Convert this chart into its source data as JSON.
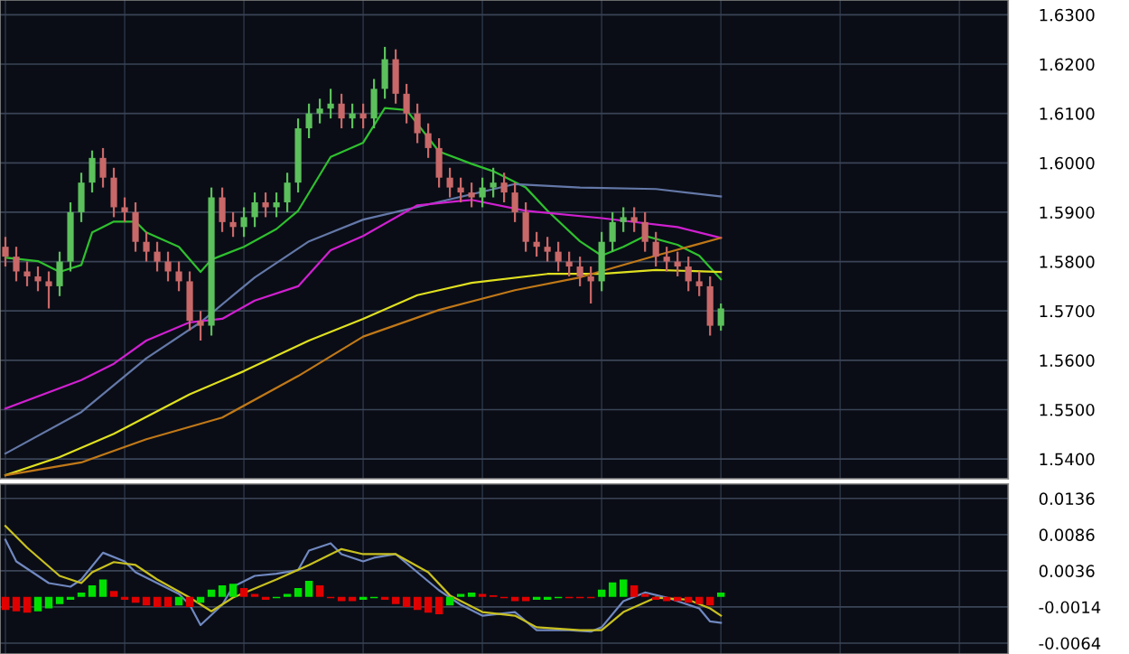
{
  "chart_data": [
    {
      "type": "candlestick",
      "categories": [
        null,
        null,
        null,
        null,
        null,
        null,
        null,
        null,
        null,
        null,
        null,
        null,
        null,
        null,
        null,
        null,
        null,
        null,
        null,
        null,
        null,
        null,
        null,
        null,
        null,
        null,
        null,
        null,
        null,
        null,
        null,
        null,
        null,
        null,
        null,
        null,
        null,
        null,
        null,
        null,
        null,
        null,
        null,
        null,
        null,
        null,
        null,
        null,
        null,
        null,
        null,
        null,
        null,
        null,
        null,
        null,
        null,
        null,
        null,
        null,
        null,
        null,
        null,
        null,
        null,
        null,
        null,
        null,
        null,
        null,
        null,
        null,
        null,
        null,
        null,
        null,
        null,
        null,
        null,
        null,
        null,
        null,
        null,
        null,
        null,
        null,
        null,
        null,
        null,
        null,
        null,
        null,
        null
      ],
      "colors": [
        "#c86868",
        "#c86868",
        "#c86868",
        "#c86868",
        "#c86868",
        "#5cc05c",
        "#5cc05c",
        "#5cc05c",
        "#5cc05c",
        "#c86868",
        "#c86868",
        "#c86868",
        "#c86868",
        "#c86868",
        "#c86868",
        "#c86868",
        "#c86868",
        "#c86868",
        "#c86868",
        "#5cc05c",
        "#c86868",
        "#c86868",
        "#5cc05c",
        "#5cc05c",
        "#c86868",
        "#5cc05c",
        "#5cc05c",
        "#5cc05c",
        "#5cc05c",
        "#5cc05c",
        "#5cc05c",
        "#c86868",
        "#5cc05c",
        "#c86868",
        "#5cc05c",
        "#5cc05c",
        "#c86868",
        "#c86868",
        "#c86868",
        "#c86868",
        "#c86868",
        "#c86868",
        "#c86868",
        "#c86868",
        "#5cc05c",
        "#5cc05c",
        "#c86868",
        "#c86868",
        "#c86868",
        "#c86868",
        "#c86868",
        "#c86868",
        "#c86868",
        "#c86868",
        "#c86868",
        "#5cc05c",
        "#5cc05c",
        "#5cc05c",
        "#c86868",
        "#c86868",
        "#c86868",
        "#c86868",
        "#c86868",
        "#c86868",
        "#c86868",
        "#c86868",
        "#5cc05c",
        null,
        null,
        null,
        null,
        null,
        null,
        null,
        null,
        null,
        null,
        null,
        null,
        null,
        null,
        null,
        null,
        null,
        null,
        null,
        null,
        null,
        null,
        null,
        null,
        null,
        null
      ],
      "ohlc": [
        [
          1.583,
          1.585,
          1.579,
          1.581
        ],
        [
          1.581,
          1.583,
          1.576,
          1.578
        ],
        [
          1.578,
          1.58,
          1.575,
          1.577
        ],
        [
          1.577,
          1.579,
          1.574,
          1.576
        ],
        [
          1.576,
          1.578,
          1.5705,
          1.575
        ],
        [
          1.575,
          1.582,
          1.573,
          1.58
        ],
        [
          1.58,
          1.592,
          1.578,
          1.59
        ],
        [
          1.59,
          1.598,
          1.588,
          1.596
        ],
        [
          1.596,
          1.6025,
          1.594,
          1.601
        ],
        [
          1.601,
          1.603,
          1.595,
          1.597
        ],
        [
          1.597,
          1.599,
          1.589,
          1.591
        ],
        [
          1.591,
          1.593,
          1.588,
          1.59
        ],
        [
          1.59,
          1.592,
          1.582,
          1.584
        ],
        [
          1.584,
          1.586,
          1.58,
          1.582
        ],
        [
          1.582,
          1.584,
          1.578,
          1.58
        ],
        [
          1.58,
          1.582,
          1.576,
          1.578
        ],
        [
          1.578,
          1.58,
          1.574,
          1.576
        ],
        [
          1.576,
          1.578,
          1.566,
          1.568
        ],
        [
          1.568,
          1.57,
          1.564,
          1.567
        ],
        [
          1.567,
          1.595,
          1.565,
          1.593
        ],
        [
          1.593,
          1.595,
          1.586,
          1.588
        ],
        [
          1.588,
          1.59,
          1.585,
          1.587
        ],
        [
          1.587,
          1.591,
          1.585,
          1.589
        ],
        [
          1.589,
          1.594,
          1.587,
          1.592
        ],
        [
          1.592,
          1.594,
          1.589,
          1.591
        ],
        [
          1.591,
          1.594,
          1.589,
          1.592
        ],
        [
          1.592,
          1.598,
          1.59,
          1.596
        ],
        [
          1.596,
          1.609,
          1.594,
          1.607
        ],
        [
          1.607,
          1.612,
          1.605,
          1.61
        ],
        [
          1.61,
          1.613,
          1.608,
          1.611
        ],
        [
          1.611,
          1.615,
          1.609,
          1.612
        ],
        [
          1.612,
          1.614,
          1.607,
          1.609
        ],
        [
          1.609,
          1.612,
          1.607,
          1.61
        ],
        [
          1.61,
          1.612,
          1.607,
          1.609
        ],
        [
          1.609,
          1.617,
          1.607,
          1.615
        ],
        [
          1.615,
          1.6235,
          1.613,
          1.621
        ],
        [
          1.621,
          1.623,
          1.612,
          1.614
        ],
        [
          1.614,
          1.616,
          1.608,
          1.61
        ],
        [
          1.61,
          1.612,
          1.604,
          1.606
        ],
        [
          1.606,
          1.608,
          1.601,
          1.603
        ],
        [
          1.603,
          1.605,
          1.595,
          1.597
        ],
        [
          1.597,
          1.599,
          1.593,
          1.595
        ],
        [
          1.595,
          1.597,
          1.592,
          1.594
        ],
        [
          1.594,
          1.596,
          1.591,
          1.593
        ],
        [
          1.593,
          1.597,
          1.591,
          1.595
        ],
        [
          1.595,
          1.599,
          1.593,
          1.596
        ],
        [
          1.596,
          1.598,
          1.592,
          1.594
        ],
        [
          1.594,
          1.596,
          1.588,
          1.59
        ],
        [
          1.59,
          1.592,
          1.582,
          1.584
        ],
        [
          1.584,
          1.586,
          1.581,
          1.583
        ],
        [
          1.583,
          1.585,
          1.58,
          1.582
        ],
        [
          1.582,
          1.584,
          1.578,
          1.58
        ],
        [
          1.58,
          1.582,
          1.577,
          1.579
        ],
        [
          1.579,
          1.581,
          1.575,
          1.577
        ],
        [
          1.577,
          1.579,
          1.5715,
          1.576
        ],
        [
          1.576,
          1.586,
          1.574,
          1.584
        ],
        [
          1.584,
          1.59,
          1.582,
          1.588
        ],
        [
          1.588,
          1.591,
          1.586,
          1.589
        ],
        [
          1.589,
          1.591,
          1.586,
          1.588
        ],
        [
          1.588,
          1.59,
          1.582,
          1.584
        ],
        [
          1.584,
          1.586,
          1.579,
          1.581
        ],
        [
          1.581,
          1.583,
          1.578,
          1.58
        ],
        [
          1.58,
          1.582,
          1.577,
          1.579
        ],
        [
          1.579,
          1.581,
          1.574,
          1.576
        ],
        [
          1.576,
          1.578,
          1.573,
          1.575
        ],
        [
          1.575,
          1.577,
          1.565,
          1.567
        ],
        [
          1.567,
          1.5715,
          1.566,
          1.5705
        ],
        null,
        null,
        null,
        null,
        null,
        null,
        null,
        null,
        null,
        null,
        null,
        null,
        null,
        null,
        null,
        null,
        null,
        null,
        null,
        null,
        null,
        null,
        null,
        null,
        null,
        null
      ],
      "series": [
        {
          "type": "line",
          "color": "#2fc02f",
          "values": [
            1.5808,
            null,
            null,
            1.5801,
            null,
            1.5779,
            null,
            1.5793,
            1.5859,
            null,
            1.5881,
            null,
            1.5881,
            1.5859,
            null,
            null,
            1.583,
            null,
            1.5779,
            1.5804,
            null,
            null,
            1.583,
            null,
            null,
            1.5866,
            null,
            1.5903,
            null,
            null,
            1.6012,
            null,
            null,
            1.6041,
            null,
            1.6111,
            null,
            1.6107,
            null,
            null,
            1.6023,
            null,
            null,
            1.5998,
            null,
            1.5983,
            null,
            null,
            1.595,
            null,
            1.5903,
            null,
            null,
            1.5841,
            null,
            1.5812,
            null,
            1.583,
            null,
            1.5852,
            null,
            null,
            1.5834,
            null,
            1.5812,
            null,
            1.5764,
            null,
            null,
            null,
            null,
            null,
            null,
            null,
            null,
            null,
            null,
            null,
            null,
            null,
            null,
            null,
            null,
            null,
            null,
            null,
            null,
            null,
            null,
            null,
            null,
            null,
            null
          ]
        },
        {
          "type": "line",
          "color": "#6478a8",
          "values": [
            1.5411,
            null,
            null,
            null,
            null,
            null,
            null,
            1.5495,
            null,
            null,
            null,
            null,
            null,
            1.5604,
            null,
            null,
            null,
            null,
            1.5677,
            null,
            null,
            null,
            null,
            1.5768,
            null,
            null,
            null,
            null,
            1.5841,
            null,
            null,
            null,
            null,
            1.5885,
            null,
            null,
            null,
            null,
            null,
            null,
            1.5921,
            null,
            null,
            null,
            null,
            null,
            null,
            1.5957,
            null,
            null,
            null,
            null,
            null,
            1.595,
            null,
            null,
            null,
            null,
            null,
            null,
            1.5947,
            null,
            null,
            null,
            null,
            null,
            1.5932,
            null,
            null,
            null,
            null,
            null,
            null,
            null,
            null,
            null,
            null,
            null,
            null,
            null,
            null,
            null,
            null,
            null,
            null,
            null,
            null,
            null,
            null,
            null,
            null,
            null,
            null
          ]
        },
        {
          "type": "line",
          "color": "#d020d0",
          "values": [
            1.5502,
            null,
            null,
            null,
            null,
            null,
            null,
            1.556,
            null,
            null,
            1.5593,
            null,
            null,
            1.564,
            null,
            null,
            null,
            1.5677,
            null,
            null,
            1.5684,
            null,
            null,
            1.5721,
            null,
            null,
            null,
            1.575,
            null,
            null,
            1.5823,
            null,
            null,
            1.5852,
            null,
            null,
            null,
            null,
            1.5914,
            null,
            null,
            null,
            null,
            1.5925,
            null,
            null,
            null,
            null,
            1.5903,
            null,
            null,
            null,
            null,
            null,
            null,
            1.5888,
            null,
            null,
            null,
            null,
            null,
            null,
            1.587,
            null,
            null,
            null,
            1.5848,
            null,
            null,
            null,
            null,
            null,
            null,
            null,
            null,
            null,
            null,
            null,
            null,
            null,
            null,
            null,
            null,
            null,
            null,
            null,
            null,
            null,
            null,
            null,
            null,
            null,
            null
          ]
        },
        {
          "type": "line",
          "color": "#e0e020",
          "values": [
            1.5367,
            null,
            null,
            null,
            null,
            1.5404,
            null,
            null,
            null,
            null,
            1.5451,
            null,
            null,
            null,
            null,
            null,
            null,
            1.5531,
            null,
            null,
            null,
            null,
            1.5578,
            null,
            null,
            null,
            null,
            null,
            1.564,
            null,
            null,
            null,
            null,
            1.5684,
            null,
            null,
            null,
            null,
            1.5732,
            null,
            null,
            null,
            null,
            1.5757,
            null,
            null,
            null,
            null,
            null,
            null,
            1.5775,
            null,
            null,
            null,
            null,
            1.5775,
            null,
            null,
            null,
            null,
            1.5783,
            null,
            null,
            null,
            null,
            null,
            1.5779,
            null,
            null,
            null,
            null,
            null,
            null,
            null,
            null,
            null,
            null,
            null,
            null,
            null,
            null,
            null,
            null,
            null,
            null,
            null,
            null,
            null,
            null,
            null,
            null,
            null,
            null
          ]
        },
        {
          "type": "line",
          "color": "#c07818",
          "values": [
            1.5367,
            null,
            null,
            null,
            null,
            null,
            null,
            1.5393,
            null,
            null,
            null,
            null,
            null,
            1.544,
            null,
            null,
            null,
            null,
            null,
            null,
            1.5484,
            null,
            null,
            null,
            null,
            null,
            null,
            1.5568,
            null,
            null,
            null,
            null,
            null,
            1.5648,
            null,
            null,
            null,
            null,
            null,
            null,
            1.5702,
            null,
            null,
            null,
            null,
            null,
            null,
            1.5742,
            null,
            null,
            null,
            null,
            null,
            1.5768,
            null,
            null,
            null,
            null,
            null,
            null,
            1.5812,
            null,
            null,
            null,
            null,
            null,
            1.5848,
            null,
            null,
            null,
            null,
            null,
            null,
            null,
            null,
            null,
            null,
            null,
            null,
            null,
            null,
            null,
            null,
            null,
            null,
            null,
            null,
            null,
            null,
            null,
            null,
            null,
            null
          ]
        }
      ],
      "ylim": [
        1.536,
        1.633
      ],
      "yticks": [
        {
          "value": 1.54,
          "label": "1.5400"
        },
        {
          "value": 1.55,
          "label": "1.5500"
        },
        {
          "value": 1.56,
          "label": "1.5600"
        },
        {
          "value": 1.57,
          "label": "1.5700"
        },
        {
          "value": 1.58,
          "label": "1.5800"
        },
        {
          "value": 1.59,
          "label": "1.5900"
        },
        {
          "value": 1.6,
          "label": "1.6000"
        },
        {
          "value": 1.61,
          "label": "1.6100"
        },
        {
          "value": 1.62,
          "label": "1.6200"
        },
        {
          "value": 1.63,
          "label": "1.6300"
        }
      ],
      "grid": true,
      "tick_labels": "y"
    },
    {
      "type": "bar",
      "categories": [
        null,
        null,
        null,
        null,
        null,
        null,
        null,
        null,
        null,
        null,
        null,
        null,
        null,
        null,
        null,
        null,
        null,
        null,
        null,
        null,
        null,
        null,
        null,
        null,
        null,
        null,
        null,
        null,
        null,
        null,
        null,
        null,
        null,
        null,
        null,
        null,
        null,
        null,
        null,
        null,
        null,
        null,
        null,
        null,
        null,
        null,
        null,
        null,
        null,
        null,
        null,
        null,
        null,
        null,
        null,
        null,
        null,
        null,
        null,
        null,
        null,
        null,
        null,
        null,
        null,
        null,
        null,
        null,
        null,
        null,
        null,
        null,
        null,
        null,
        null,
        null,
        null,
        null,
        null,
        null,
        null,
        null,
        null,
        null,
        null,
        null,
        null,
        null,
        null,
        null,
        null,
        null,
        null
      ],
      "series": [
        {
          "type": "bar",
          "values": [
            -0.0018,
            -0.002,
            -0.0022,
            -0.002,
            -0.0016,
            -0.001,
            -0.0004,
            0.0006,
            0.0016,
            0.0024,
            0.0008,
            -0.0004,
            -0.0008,
            -0.0012,
            -0.0014,
            -0.0014,
            -0.0012,
            -0.0014,
            -0.0008,
            0.001,
            0.0016,
            0.0018,
            0.0012,
            0.0004,
            -0.0004,
            -0.0002,
            0.0004,
            0.0012,
            0.0022,
            0.0016,
            -0.0002,
            -0.0006,
            -0.0006,
            -0.0004,
            -0.0002,
            -0.0004,
            -0.001,
            -0.0014,
            -0.0018,
            -0.0022,
            -0.0024,
            -0.0012,
            0.0004,
            0.0006,
            0.0004,
            0.0002,
            -0.0002,
            -0.0006,
            -0.0006,
            -0.0004,
            -0.0004,
            -0.0002,
            -0.0002,
            -0.0002,
            -0.0002,
            0.001,
            0.002,
            0.0024,
            0.0016,
            0.0004,
            -0.0004,
            -0.0006,
            -0.0006,
            -0.0008,
            -0.001,
            -0.0012,
            0.0006,
            null,
            null,
            null,
            null,
            null,
            null,
            null,
            null,
            null,
            null,
            null,
            null,
            null,
            null,
            null,
            null,
            null,
            null,
            null,
            null,
            null,
            null,
            null,
            null,
            null,
            null
          ],
          "colors": [
            "#e00000",
            "#e00000",
            "#e00000",
            "#00e000",
            "#00e000",
            "#00e000",
            "#00e000",
            "#00e000",
            "#00e000",
            "#00e000",
            "#e00000",
            "#e00000",
            "#e00000",
            "#e00000",
            "#e00000",
            "#e00000",
            "#00e000",
            "#e00000",
            "#00e000",
            "#00e000",
            "#00e000",
            "#00e000",
            "#e00000",
            "#e00000",
            "#e00000",
            "#00e000",
            "#00e000",
            "#00e000",
            "#00e000",
            "#e00000",
            "#e00000",
            "#e00000",
            "#e00000",
            "#00e000",
            "#00e000",
            "#e00000",
            "#e00000",
            "#e00000",
            "#e00000",
            "#e00000",
            "#e00000",
            "#00e000",
            "#00e000",
            "#00e000",
            "#e00000",
            "#e00000",
            "#e00000",
            "#e00000",
            "#e00000",
            "#00e000",
            "#00e000",
            "#00e000",
            "#e00000",
            "#e00000",
            "#e00000",
            "#00e000",
            "#00e000",
            "#00e000",
            "#e00000",
            "#e00000",
            "#e00000",
            "#e00000",
            "#e00000",
            "#e00000",
            "#e00000",
            "#e00000",
            "#00e000",
            null,
            null,
            null,
            null,
            null,
            null,
            null,
            null,
            null,
            null,
            null,
            null,
            null,
            null,
            null,
            null,
            null,
            null,
            null,
            null,
            null,
            null,
            null,
            null,
            null,
            null
          ]
        },
        {
          "type": "line",
          "color": "#7088c0",
          "values": [
            0.0079,
            0.0049,
            null,
            null,
            0.0019,
            null,
            0.0014,
            0.0024,
            null,
            0.0061,
            null,
            0.0049,
            0.0034,
            null,
            0.0019,
            null,
            0.0004,
            -0.0011,
            -0.0039,
            null,
            -0.0011,
            0.0014,
            null,
            0.0029,
            null,
            0.0032,
            null,
            0.0037,
            0.0064,
            null,
            0.0074,
            0.0059,
            null,
            0.0049,
            0.0054,
            null,
            0.0059,
            null,
            0.0034,
            null,
            0.0009,
            null,
            -0.0011,
            null,
            -0.0026,
            null,
            null,
            -0.0021,
            null,
            -0.0046,
            null,
            null,
            -0.0046,
            null,
            -0.0048,
            -0.0042,
            null,
            -0.0006,
            null,
            0.0006,
            null,
            -0.0001,
            null,
            null,
            -0.0016,
            -0.0034,
            -0.0036,
            null,
            null,
            null,
            null,
            null,
            null,
            null,
            null,
            null,
            null,
            null,
            null,
            null,
            null,
            null,
            null,
            null,
            null,
            null,
            null,
            null,
            null,
            null,
            null,
            null,
            null
          ]
        },
        {
          "type": "line",
          "color": "#c8c020",
          "values": [
            0.0098,
            null,
            0.0068,
            null,
            null,
            0.0029,
            null,
            0.0019,
            0.0034,
            null,
            0.0048,
            null,
            0.0044,
            null,
            0.0024,
            null,
            null,
            -0.0001,
            null,
            -0.002,
            null,
            -0.0001,
            null,
            null,
            null,
            0.0024,
            null,
            null,
            0.0044,
            null,
            null,
            0.0066,
            null,
            0.0059,
            null,
            null,
            0.0059,
            null,
            null,
            0.0034,
            null,
            0.0002,
            null,
            null,
            -0.0021,
            null,
            null,
            -0.0026,
            null,
            -0.0042,
            null,
            null,
            null,
            -0.0046,
            null,
            -0.0046,
            null,
            -0.0021,
            null,
            null,
            -0.0001,
            null,
            null,
            -0.0004,
            null,
            -0.0016,
            -0.0026,
            null,
            null,
            null,
            null,
            null,
            null,
            null,
            null,
            null,
            null,
            null,
            null,
            null,
            null,
            null,
            null,
            null,
            null,
            null,
            null,
            null,
            null,
            null,
            null,
            null,
            null
          ]
        }
      ],
      "ylim": [
        -0.0079,
        0.0156
      ],
      "yticks": [
        0.0136,
        0.0086,
        0.0036,
        -0.0014,
        -0.0064
      ],
      "grid": true,
      "tick_labels": "y"
    }
  ]
}
